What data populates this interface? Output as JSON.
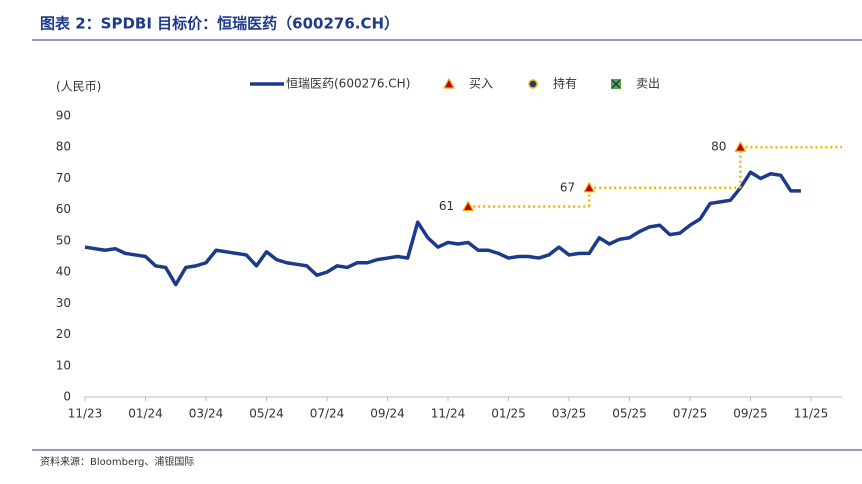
{
  "chart_data": {
    "type": "line",
    "title": "图表 2：SPDBI 目标价：恒瑞医药（600276.CH）",
    "y_label": "(人民币)",
    "source": "资料来源：Bloomberg、浦银国际",
    "categories": [
      "11/23",
      null,
      null,
      null,
      null,
      null,
      "01/24",
      null,
      null,
      null,
      null,
      null,
      "03/24",
      null,
      null,
      null,
      null,
      null,
      "05/24",
      null,
      null,
      null,
      null,
      null,
      "07/24",
      null,
      null,
      null,
      null,
      null,
      "09/24",
      null,
      null,
      null,
      null,
      null,
      "11/24",
      null,
      null,
      null,
      null,
      null,
      "01/25",
      null,
      null,
      null,
      null,
      null,
      "03/25",
      null,
      null,
      null,
      null,
      null,
      "05/25",
      null,
      null,
      null,
      null,
      null,
      "07/25",
      null,
      null,
      null,
      null,
      null,
      "09/25",
      null,
      null,
      null,
      null,
      null,
      "11/25"
    ],
    "ylim": [
      0,
      90
    ],
    "yticks": [
      0,
      10,
      20,
      30,
      40,
      50,
      60,
      70,
      80,
      90
    ],
    "grid": false,
    "series": [
      {
        "name": "恒瑞医药(600276.CH)",
        "marker": "line",
        "color": "#1b3a8a",
        "values": [
          48,
          47.5,
          47,
          47.5,
          46,
          45.5,
          45,
          42,
          41.5,
          36,
          41.5,
          42,
          43,
          47,
          46.5,
          46,
          45.5,
          42,
          46.5,
          44,
          43,
          42.5,
          42,
          39,
          40,
          42,
          41.5,
          43,
          43,
          44,
          44.5,
          45,
          44.5,
          56,
          51,
          48,
          49.5,
          49,
          49.5,
          47,
          47,
          46,
          44.5,
          45,
          45,
          44.5,
          45.5,
          48,
          45.5,
          46,
          46,
          51,
          49,
          50.5,
          51,
          53,
          54.5,
          55,
          52,
          52.5,
          55,
          57,
          62,
          62.5,
          63,
          67,
          72,
          70,
          71.5,
          71,
          66,
          66,
          null
        ]
      },
      {
        "name": "买入",
        "marker": "triangle",
        "color": "#c00000",
        "line_color": "#f0b400",
        "values": [
          null,
          null,
          null,
          null,
          null,
          null,
          null,
          null,
          null,
          null,
          null,
          null,
          null,
          null,
          null,
          null,
          null,
          null,
          null,
          null,
          null,
          null,
          null,
          null,
          null,
          null,
          null,
          null,
          null,
          null,
          null,
          null,
          null,
          null,
          null,
          null,
          null,
          null,
          61,
          null,
          null,
          null,
          null,
          null,
          null,
          null,
          null,
          null,
          null,
          null,
          67,
          null,
          null,
          null,
          null,
          null,
          null,
          null,
          null,
          null,
          null,
          null,
          null,
          null,
          null,
          80,
          null,
          null,
          null,
          null,
          null,
          null,
          null
        ]
      },
      {
        "name": "持有",
        "marker": "circle",
        "color": "#1b3a8a",
        "values": [
          null,
          null,
          null,
          null,
          null,
          null,
          null,
          null,
          null,
          null,
          null,
          null,
          null,
          null,
          null,
          null,
          null,
          null,
          null,
          null,
          null,
          null,
          null,
          null,
          null,
          null,
          null,
          null,
          null,
          null,
          null,
          null,
          null,
          null,
          null,
          null,
          null,
          null,
          null,
          null,
          null,
          null,
          null,
          null,
          null,
          null,
          null,
          null,
          null,
          null,
          null,
          null,
          null,
          null,
          null,
          null,
          null,
          null,
          null,
          null,
          null,
          null,
          null,
          null,
          null,
          null,
          null,
          null,
          null,
          null,
          null,
          null,
          null
        ]
      },
      {
        "name": "卖出",
        "marker": "square-x",
        "color": "#5aa832",
        "values": [
          null,
          null,
          null,
          null,
          null,
          null,
          null,
          null,
          null,
          null,
          null,
          null,
          null,
          null,
          null,
          null,
          null,
          null,
          null,
          null,
          null,
          null,
          null,
          null,
          null,
          null,
          null,
          null,
          null,
          null,
          null,
          null,
          null,
          null,
          null,
          null,
          null,
          null,
          null,
          null,
          null,
          null,
          null,
          null,
          null,
          null,
          null,
          null,
          null,
          null,
          null,
          null,
          null,
          null,
          null,
          null,
          null,
          null,
          null,
          null,
          null,
          null,
          null,
          null,
          null,
          null,
          null,
          null,
          null,
          null,
          null,
          null,
          null
        ]
      }
    ]
  }
}
